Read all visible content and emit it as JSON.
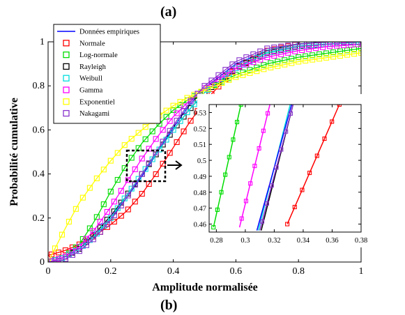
{
  "figure": {
    "title_top": "(a)",
    "title_bottom": "(b)"
  },
  "chart_data": [
    {
      "type": "line",
      "panel": "main",
      "xlabel": "Amplitude normalisée",
      "ylabel": "Probabilité cumulative",
      "xlim": [
        0,
        1
      ],
      "ylim": [
        0,
        1
      ],
      "xticks": [
        0,
        0.2,
        0.4,
        0.6,
        0.8,
        1
      ],
      "xtick_labels": [
        "0",
        "0.2",
        "0.4",
        "0.6",
        "0.8",
        "1"
      ],
      "yticks": [
        0,
        0.2,
        0.4,
        0.6,
        0.8,
        1
      ],
      "ytick_labels": [
        "0",
        "0.2",
        "0.4",
        "0.6",
        "0.8",
        "1"
      ],
      "grid": false,
      "legend_position": "top-left",
      "series": [
        {
          "name": "Données empiriques",
          "color": "#0000ff",
          "marker": "none",
          "x": [
            0,
            0.05,
            0.1,
            0.15,
            0.2,
            0.25,
            0.3,
            0.35,
            0.4,
            0.45,
            0.5,
            0.6,
            0.7,
            0.8,
            0.9,
            1
          ],
          "y": [
            0,
            0.02,
            0.06,
            0.12,
            0.2,
            0.29,
            0.39,
            0.5,
            0.61,
            0.71,
            0.79,
            0.9,
            0.96,
            0.99,
            1,
            1
          ]
        },
        {
          "name": "Normale",
          "color": "#ff0000",
          "marker": "square",
          "x": [
            0,
            0.05,
            0.1,
            0.15,
            0.2,
            0.25,
            0.3,
            0.35,
            0.4,
            0.45,
            0.5,
            0.6,
            0.7,
            0.8,
            0.9,
            1
          ],
          "y": [
            0.03,
            0.05,
            0.08,
            0.12,
            0.17,
            0.23,
            0.31,
            0.41,
            0.52,
            0.63,
            0.73,
            0.88,
            0.96,
            0.99,
            1,
            1
          ]
        },
        {
          "name": "Log-normale",
          "color": "#00dd00",
          "marker": "square",
          "x": [
            0,
            0.05,
            0.1,
            0.15,
            0.2,
            0.25,
            0.3,
            0.35,
            0.4,
            0.45,
            0.5,
            0.6,
            0.7,
            0.8,
            0.9,
            1
          ],
          "y": [
            0,
            0.02,
            0.08,
            0.19,
            0.32,
            0.44,
            0.54,
            0.62,
            0.69,
            0.74,
            0.78,
            0.85,
            0.9,
            0.93,
            0.95,
            0.97
          ]
        },
        {
          "name": "Rayleigh",
          "color": "#000000",
          "marker": "square",
          "x": [
            0,
            0.05,
            0.1,
            0.15,
            0.2,
            0.25,
            0.3,
            0.35,
            0.4,
            0.45,
            0.5,
            0.6,
            0.7,
            0.8,
            0.9,
            1
          ],
          "y": [
            0,
            0.02,
            0.06,
            0.13,
            0.21,
            0.3,
            0.4,
            0.5,
            0.6,
            0.69,
            0.77,
            0.88,
            0.95,
            0.98,
            0.99,
            1
          ]
        },
        {
          "name": "Weibull",
          "color": "#00dddd",
          "marker": "square",
          "x": [
            0,
            0.05,
            0.1,
            0.15,
            0.2,
            0.25,
            0.3,
            0.35,
            0.4,
            0.45,
            0.5,
            0.6,
            0.7,
            0.8,
            0.9,
            1
          ],
          "y": [
            0,
            0.02,
            0.06,
            0.12,
            0.2,
            0.3,
            0.4,
            0.5,
            0.6,
            0.69,
            0.77,
            0.88,
            0.95,
            0.98,
            0.99,
            1
          ]
        },
        {
          "name": "Gamma",
          "color": "#ff00ff",
          "marker": "square",
          "x": [
            0,
            0.05,
            0.1,
            0.15,
            0.2,
            0.25,
            0.3,
            0.35,
            0.4,
            0.45,
            0.5,
            0.6,
            0.7,
            0.8,
            0.9,
            1
          ],
          "y": [
            0,
            0.02,
            0.07,
            0.15,
            0.25,
            0.36,
            0.47,
            0.57,
            0.66,
            0.73,
            0.79,
            0.88,
            0.93,
            0.96,
            0.98,
            0.99
          ]
        },
        {
          "name": "Exponentiel",
          "color": "#ffff00",
          "marker": "square",
          "x": [
            0,
            0.05,
            0.1,
            0.15,
            0.2,
            0.25,
            0.3,
            0.35,
            0.4,
            0.45,
            0.5,
            0.6,
            0.7,
            0.8,
            0.9,
            1
          ],
          "y": [
            0,
            0.14,
            0.27,
            0.37,
            0.46,
            0.54,
            0.6,
            0.66,
            0.71,
            0.75,
            0.78,
            0.84,
            0.88,
            0.91,
            0.93,
            0.95
          ]
        },
        {
          "name": "Nakagami",
          "color": "#8833cc",
          "marker": "square",
          "x": [
            0,
            0.05,
            0.1,
            0.15,
            0.2,
            0.25,
            0.3,
            0.35,
            0.4,
            0.45,
            0.5,
            0.6,
            0.7,
            0.8,
            0.9,
            1
          ],
          "y": [
            0,
            0.01,
            0.05,
            0.11,
            0.19,
            0.29,
            0.4,
            0.51,
            0.62,
            0.72,
            0.8,
            0.91,
            0.97,
            0.99,
            1,
            1
          ]
        }
      ]
    },
    {
      "type": "line",
      "panel": "inset",
      "xlim": [
        0.275,
        0.38
      ],
      "ylim": [
        0.455,
        0.535
      ],
      "xticks": [
        0.28,
        0.3,
        0.32,
        0.34,
        0.36,
        0.38
      ],
      "xtick_labels": [
        "0.28",
        "0.3",
        "0.32",
        "0.34",
        "0.36",
        "0.38"
      ],
      "yticks": [
        0.46,
        0.47,
        0.48,
        0.49,
        0.5,
        0.51,
        0.52,
        0.53
      ],
      "ytick_labels": [
        "0.46",
        "0.47",
        "0.48",
        "0.49",
        "0.5",
        "0.51",
        "0.52",
        "0.53"
      ],
      "grid": false,
      "series": [
        {
          "name": "Log-normale",
          "color": "#00dd00",
          "marker": "square",
          "x": [
            0.278,
            0.297
          ],
          "y": [
            0.458,
            0.535
          ]
        },
        {
          "name": "Gamma",
          "color": "#ff00ff",
          "marker": "square",
          "x": [
            0.296,
            0.317
          ],
          "y": [
            0.458,
            0.535
          ]
        },
        {
          "name": "Weibull",
          "color": "#00dddd",
          "marker": "none",
          "x": [
            0.309,
            0.331
          ],
          "y": [
            0.456,
            0.535
          ]
        },
        {
          "name": "Données empiriques",
          "color": "#0000ff",
          "marker": "none",
          "x": [
            0.308,
            0.332
          ],
          "y": [
            0.456,
            0.535
          ]
        },
        {
          "name": "Rayleigh",
          "color": "#000000",
          "marker": "none",
          "x": [
            0.311,
            0.333
          ],
          "y": [
            0.456,
            0.535
          ]
        },
        {
          "name": "Nakagami",
          "color": "#8833cc",
          "marker": "square",
          "x": [
            0.31,
            0.333
          ],
          "y": [
            0.456,
            0.535
          ]
        },
        {
          "name": "Normale",
          "color": "#ff0000",
          "marker": "square",
          "x": [
            0.329,
            0.365
          ],
          "y": [
            0.46,
            0.535
          ]
        }
      ]
    }
  ]
}
